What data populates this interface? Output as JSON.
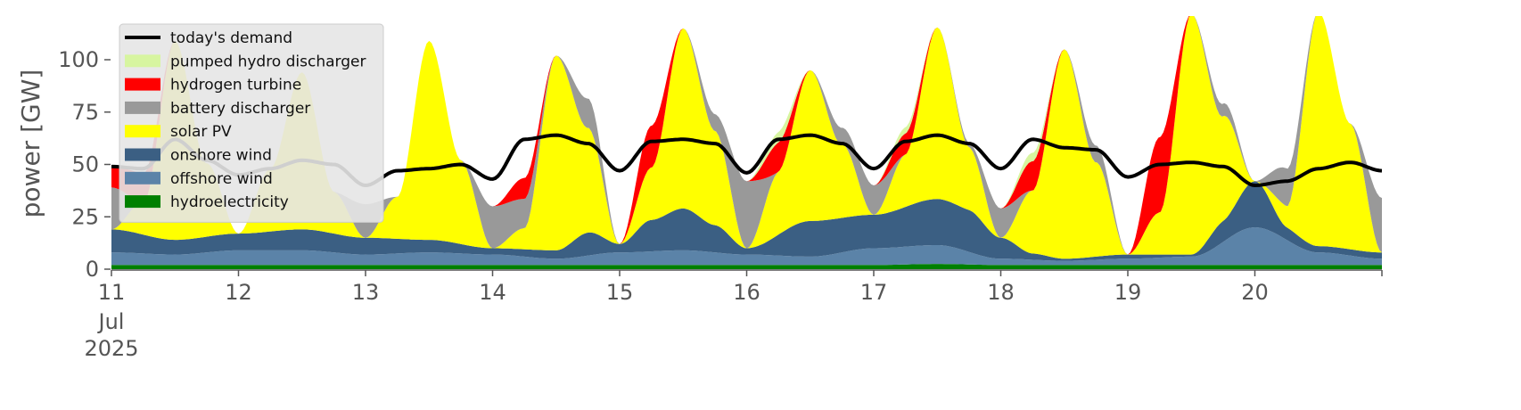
{
  "chart_data": {
    "type": "area",
    "stacked": true,
    "title": "",
    "xlabel": "",
    "ylabel": "power [GW]",
    "x_unit": "day of July 2025 (fractional)",
    "xlim": [
      11,
      21
    ],
    "ylim": [
      0,
      120
    ],
    "x_ticks": [
      {
        "value": 11,
        "label": "11",
        "extra": [
          "Jul",
          "2025"
        ]
      },
      {
        "value": 12,
        "label": "12"
      },
      {
        "value": 13,
        "label": "13"
      },
      {
        "value": 14,
        "label": "14"
      },
      {
        "value": 15,
        "label": "15"
      },
      {
        "value": 16,
        "label": "16"
      },
      {
        "value": 17,
        "label": "17"
      },
      {
        "value": 18,
        "label": "18"
      },
      {
        "value": 19,
        "label": "19"
      },
      {
        "value": 20,
        "label": "20"
      },
      {
        "value": 21,
        "label": ""
      }
    ],
    "y_ticks": [
      {
        "value": 0,
        "label": "0"
      },
      {
        "value": 25,
        "label": "25"
      },
      {
        "value": 50,
        "label": "50"
      },
      {
        "value": 75,
        "label": "75"
      },
      {
        "value": 100,
        "label": "100"
      }
    ],
    "grid": false,
    "legend_position": "top-left",
    "plot_background": "#ffffff",
    "series": [
      {
        "name": "hydroelectricity",
        "color": "#008000",
        "x": [
          11,
          12,
          13,
          14,
          15,
          16,
          17,
          17.5,
          18,
          19,
          20,
          21
        ],
        "values": [
          2,
          2,
          2,
          2,
          2,
          2,
          2,
          2.5,
          2,
          2,
          2,
          2
        ]
      },
      {
        "name": "offshore wind",
        "color": "#5b83a8",
        "x": [
          11,
          11.5,
          12,
          12.5,
          13,
          13.5,
          14,
          14.5,
          15,
          15.5,
          16,
          16.5,
          17,
          17.5,
          18,
          18.5,
          19,
          19.5,
          20,
          20.5,
          21
        ],
        "values": [
          6,
          5,
          7,
          7,
          5,
          6,
          5,
          3,
          6,
          7,
          5,
          4,
          8,
          9,
          3,
          2,
          3,
          4,
          18,
          6,
          3
        ]
      },
      {
        "name": "onshore wind",
        "color": "#3b5f83",
        "x": [
          11,
          11.5,
          12,
          12.5,
          13,
          13.5,
          14,
          14.5,
          14.75,
          15,
          15.25,
          15.5,
          15.75,
          16,
          16.5,
          17,
          17.5,
          17.75,
          18,
          18.25,
          18.5,
          19,
          19.5,
          19.75,
          20,
          20.25,
          20.5,
          21
        ],
        "values": [
          11,
          7,
          8,
          10,
          8,
          6,
          3,
          4,
          11,
          4,
          15,
          20,
          13,
          3,
          17,
          16,
          22,
          20,
          10,
          3,
          1,
          2,
          1,
          10,
          22,
          6,
          3,
          3
        ]
      },
      {
        "name": "solar PV",
        "color": "#ffff00",
        "x": [
          11,
          11.25,
          11.5,
          11.75,
          12,
          12.25,
          12.5,
          12.75,
          13,
          13.25,
          13.5,
          13.75,
          14,
          14.25,
          14.5,
          14.75,
          15,
          15.25,
          15.5,
          15.75,
          16,
          16.25,
          16.5,
          16.75,
          17,
          17.25,
          17.5,
          17.75,
          18,
          18.25,
          18.5,
          18.75,
          19,
          19.25,
          19.5,
          19.75,
          20,
          20.25,
          20.5,
          20.75,
          21
        ],
        "values": [
          0,
          15,
          95,
          35,
          0,
          30,
          75,
          20,
          0,
          20,
          95,
          40,
          0,
          10,
          93,
          50,
          0,
          25,
          86,
          45,
          0,
          30,
          72,
          35,
          0,
          25,
          82,
          30,
          0,
          30,
          100,
          45,
          0,
          20,
          115,
          50,
          0,
          10,
          112,
          60,
          0
        ]
      },
      {
        "name": "battery discharger",
        "color": "#999999",
        "x": [
          11,
          11.25,
          11.5,
          11.75,
          12,
          12.25,
          12.5,
          12.75,
          13,
          13.25,
          13.5,
          13.75,
          14,
          14.25,
          14.5,
          14.75,
          15,
          15.25,
          15.5,
          15.75,
          16,
          16.25,
          16.5,
          16.75,
          17,
          17.25,
          17.5,
          17.75,
          18,
          18.25,
          18.5,
          18.75,
          19,
          19.25,
          19.5,
          19.75,
          20,
          20.25,
          20.5,
          20.75,
          21
        ],
        "values": [
          20,
          0,
          0,
          0,
          0,
          0,
          0,
          0,
          16,
          0,
          0,
          0,
          20,
          14,
          0,
          14,
          0,
          0,
          0,
          8,
          32,
          0,
          0,
          8,
          14,
          0,
          0,
          2,
          14,
          0,
          0,
          8,
          0,
          0,
          0,
          6,
          0,
          18,
          0,
          0,
          26
        ]
      },
      {
        "name": "hydrogen turbine",
        "color": "#ff0000",
        "x": [
          11,
          11.25,
          11.5,
          12,
          13,
          14,
          14.25,
          14.5,
          15,
          15.25,
          15.5,
          16,
          16.25,
          16.5,
          17,
          17.25,
          17.5,
          18,
          18.25,
          18.5,
          19,
          19.25,
          19.5,
          20,
          21
        ],
        "values": [
          10,
          14,
          0,
          0,
          0,
          0,
          10,
          0,
          0,
          20,
          0,
          0,
          14,
          0,
          0,
          10,
          0,
          0,
          14,
          0,
          0,
          36,
          0,
          0,
          0
        ]
      },
      {
        "name": "pumped hydro discharger",
        "color": "#d7f5a0",
        "x": [
          11,
          12,
          13,
          14,
          15,
          16,
          16.25,
          16.5,
          17,
          17.25,
          17.5,
          18,
          18.25,
          18.5,
          19,
          20,
          21
        ],
        "values": [
          0,
          0,
          0,
          0,
          0,
          0,
          5,
          0,
          0,
          3,
          0,
          0,
          4,
          0,
          0,
          0,
          0
        ]
      }
    ],
    "line_series": [
      {
        "name": "today's demand",
        "color": "#000000",
        "x": [
          11,
          11.25,
          11.5,
          11.75,
          12,
          12.25,
          12.5,
          12.75,
          13,
          13.25,
          13.5,
          13.75,
          14,
          14.25,
          14.5,
          14.75,
          15,
          15.25,
          15.5,
          15.75,
          16,
          16.25,
          16.5,
          16.75,
          17,
          17.25,
          17.5,
          17.75,
          18,
          18.25,
          18.5,
          18.75,
          19,
          19.25,
          19.5,
          19.75,
          20,
          20.25,
          20.5,
          20.75,
          21
        ],
        "values": [
          49,
          48,
          62,
          52,
          45,
          48,
          52,
          50,
          40,
          47,
          48,
          50,
          43,
          62,
          64,
          60,
          47,
          61,
          62,
          60,
          46,
          62,
          64,
          60,
          48,
          61,
          64,
          60,
          48,
          62,
          58,
          57,
          44,
          50,
          51,
          49,
          40,
          42,
          48,
          51,
          47
        ]
      }
    ],
    "legend_entries": [
      {
        "name": "today's demand",
        "kind": "line",
        "color": "#000000"
      },
      {
        "name": "pumped hydro discharger",
        "kind": "patch",
        "color": "#d7f5a0"
      },
      {
        "name": "hydrogen turbine",
        "kind": "patch",
        "color": "#ff0000"
      },
      {
        "name": "battery discharger",
        "kind": "patch",
        "color": "#999999"
      },
      {
        "name": "solar PV",
        "kind": "patch",
        "color": "#ffff00"
      },
      {
        "name": "onshore wind",
        "kind": "patch",
        "color": "#3b5f83"
      },
      {
        "name": "offshore wind",
        "kind": "patch",
        "color": "#5b83a8"
      },
      {
        "name": "hydroelectricity",
        "kind": "patch",
        "color": "#008000"
      }
    ]
  }
}
